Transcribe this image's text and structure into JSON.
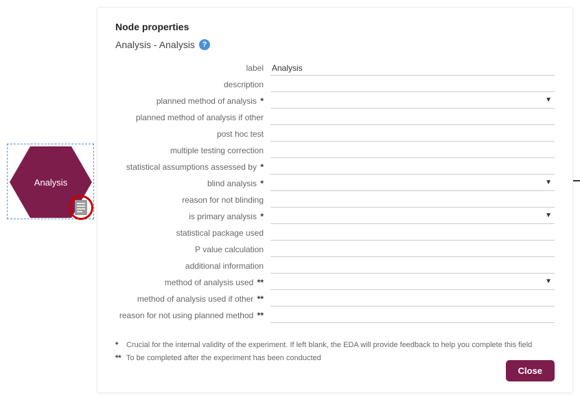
{
  "colors": {
    "accent": "#7d1d4b",
    "highlight_ring": "#c90000",
    "selection_border": "#4a90d9",
    "input_border": "#cccccc",
    "label_text": "#666666"
  },
  "node": {
    "label": "Analysis"
  },
  "panel": {
    "title": "Node properties",
    "subtitle": "Analysis - Analysis",
    "help_glyph": "?"
  },
  "fields": [
    {
      "label": "label",
      "value": "Analysis",
      "marker": "",
      "dropdown": false
    },
    {
      "label": "description",
      "value": "",
      "marker": "",
      "dropdown": false
    },
    {
      "label": "planned method of analysis",
      "value": "",
      "marker": "*",
      "dropdown": true
    },
    {
      "label": "planned method of analysis if other",
      "value": "",
      "marker": "",
      "dropdown": false
    },
    {
      "label": "post hoc test",
      "value": "",
      "marker": "",
      "dropdown": false
    },
    {
      "label": "multiple testing correction",
      "value": "",
      "marker": "",
      "dropdown": false
    },
    {
      "label": "statistical assumptions assessed by",
      "value": "",
      "marker": "*",
      "dropdown": false
    },
    {
      "label": "blind analysis",
      "value": "",
      "marker": "*",
      "dropdown": true
    },
    {
      "label": "reason for not blinding",
      "value": "",
      "marker": "",
      "dropdown": false
    },
    {
      "label": "is primary analysis",
      "value": "",
      "marker": "*",
      "dropdown": true
    },
    {
      "label": "statistical package used",
      "value": "",
      "marker": "",
      "dropdown": false
    },
    {
      "label": "P value calculation",
      "value": "",
      "marker": "",
      "dropdown": false
    },
    {
      "label": "additional information",
      "value": "",
      "marker": "",
      "dropdown": false
    },
    {
      "label": "method of analysis used",
      "value": "",
      "marker": "**",
      "dropdown": true
    },
    {
      "label": "method of analysis used if other",
      "value": "",
      "marker": "**",
      "dropdown": false
    },
    {
      "label": "reason for not using planned method",
      "value": "",
      "marker": "**",
      "dropdown": false
    }
  ],
  "footnotes": {
    "single": "Crucial for the internal validity of the experiment. If left blank, the EDA will provide feedback to help you complete this field",
    "double": "To be completed after the experiment has been conducted"
  },
  "buttons": {
    "close": "Close"
  }
}
